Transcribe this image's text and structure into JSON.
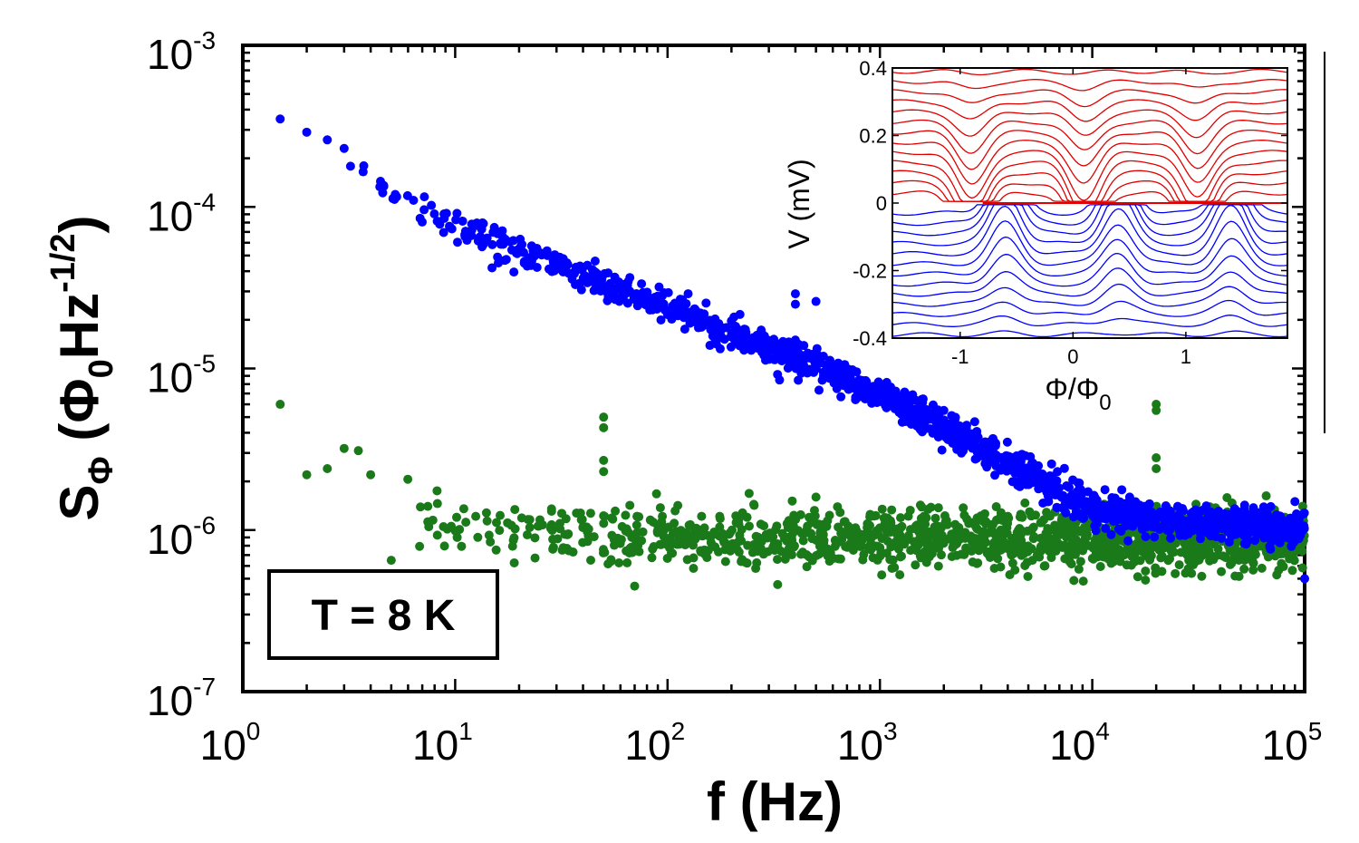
{
  "chart_data": [
    {
      "type": "scatter",
      "xscale": "log",
      "yscale": "log",
      "xlim": [
        1,
        100000
      ],
      "ylim": [
        1e-07,
        0.001
      ],
      "xticks": [
        1,
        10,
        100,
        1000,
        10000,
        100000
      ],
      "xtick_labels": [
        {
          "base": "10",
          "exp": "0"
        },
        {
          "base": "10",
          "exp": "1"
        },
        {
          "base": "10",
          "exp": "2"
        },
        {
          "base": "10",
          "exp": "3"
        },
        {
          "base": "10",
          "exp": "4"
        },
        {
          "base": "10",
          "exp": "5"
        }
      ],
      "yticks": [
        1e-07,
        1e-06,
        1e-05,
        0.0001,
        0.001
      ],
      "ytick_labels": [
        {
          "base": "10",
          "exp": "-7"
        },
        {
          "base": "10",
          "exp": "-6"
        },
        {
          "base": "10",
          "exp": "-5"
        },
        {
          "base": "10",
          "exp": "-4"
        },
        {
          "base": "10",
          "exp": "-3"
        }
      ],
      "xlabel": "f (Hz)",
      "ylabel": {
        "s": "S",
        "s_sub": "Φ",
        "open": " (Φ",
        "phi_sub": "0",
        "hz": "Hz",
        "hz_sup": "-1/2",
        "close": ")"
      },
      "annotation": "T = 8 K",
      "grid": false,
      "series": [
        {
          "color": "#0000ff",
          "model": {
            "breakpoints": [
              [
                1.5,
                0.00035
              ],
              [
                10,
                7.5e-05
              ],
              [
                100,
                2.4e-05
              ],
              [
                1000,
                7e-06
              ],
              [
                3000,
                3.3e-06
              ],
              [
                8000,
                1.5e-06
              ],
              [
                20000,
                1.15e-06
              ],
              [
                100000,
                1e-06
              ]
            ],
            "scatter_decades": 0.05
          },
          "points": [
            [
              1.5,
              0.00035
            ],
            [
              2,
              0.00029
            ],
            [
              2.5,
              0.00026
            ],
            [
              3,
              0.00023
            ],
            [
              125,
              2.9e-05
            ],
            [
              130,
              2e-05
            ],
            [
              400,
              2.9e-05
            ],
            [
              400,
              2.5e-05
            ],
            [
              500,
              2.6e-05
            ],
            [
              400,
              1.5e-05
            ],
            [
              1500,
              5e-06
            ],
            [
              2000,
              5.5e-06
            ],
            [
              2000,
              4.8e-06
            ],
            [
              15000,
              1.6e-06
            ],
            [
              30000,
              1.3e-06
            ],
            [
              50000,
              1.2e-06
            ],
            [
              100000,
              5e-07
            ],
            [
              90000,
              1.5e-06
            ]
          ]
        },
        {
          "color": "#1a7a1a",
          "model": {
            "breakpoints": [
              [
                5,
                1.2e-06
              ],
              [
                10,
                1.1e-06
              ],
              [
                30,
                9.5e-07
              ],
              [
                100,
                8.8e-07
              ],
              [
                1000,
                8.7e-07
              ],
              [
                10000,
                8.8e-07
              ],
              [
                100000,
                9e-07
              ]
            ],
            "scatter_decades": 0.09
          },
          "points": [
            [
              1.5,
              6e-06
            ],
            [
              2,
              2.2e-06
            ],
            [
              2.5,
              2.4e-06
            ],
            [
              3,
              3.2e-06
            ],
            [
              3.5,
              3.1e-06
            ],
            [
              4,
              2.2e-06
            ],
            [
              5,
              6.5e-07
            ],
            [
              50,
              5e-06
            ],
            [
              50,
              4.3e-06
            ],
            [
              50,
              2.7e-06
            ],
            [
              50,
              2.3e-06
            ],
            [
              70,
              4.5e-07
            ],
            [
              330,
              4.6e-07
            ],
            [
              500,
              1.6e-06
            ],
            [
              20000,
              6e-06
            ],
            [
              20000,
              5.5e-06
            ],
            [
              20000,
              2.8e-06
            ],
            [
              20000,
              2.4e-06
            ]
          ]
        }
      ]
    },
    {
      "type": "line",
      "xlim": [
        -1.6,
        1.9
      ],
      "ylim": [
        -0.4,
        0.4
      ],
      "xticks": [
        -1,
        0,
        1
      ],
      "xtick_labels": [
        "-1",
        "0",
        "1"
      ],
      "yticks": [
        -0.4,
        -0.2,
        0,
        0.2,
        0.4
      ],
      "ytick_labels": [
        "-0.4",
        "-0.2",
        "0",
        "0.2",
        "0.4"
      ],
      "xlabel": {
        "a": "Φ/Φ",
        "sub": "0"
      },
      "ylabel": "V (mV)",
      "grid": false,
      "series": [
        {
          "color": "#e00000",
          "model": {
            "levels": [
              0.39,
              0.36,
              0.33,
              0.3,
              0.27,
              0.24,
              0.21,
              0.18,
              0.15,
              0.12,
              0.09,
              0.06,
              0.03
            ],
            "period": 1.0,
            "dip_centers": [
              -0.9,
              0.1,
              1.1
            ]
          }
        },
        {
          "color": "#0000ff",
          "model": {
            "levels": [
              -0.03,
              -0.06,
              -0.09,
              -0.12,
              -0.15,
              -0.18,
              -0.21,
              -0.24,
              -0.27,
              -0.3,
              -0.33,
              -0.36,
              -0.39
            ],
            "period": 1.0,
            "dip_centers": [
              -0.6,
              0.4,
              1.4
            ]
          }
        }
      ]
    }
  ]
}
